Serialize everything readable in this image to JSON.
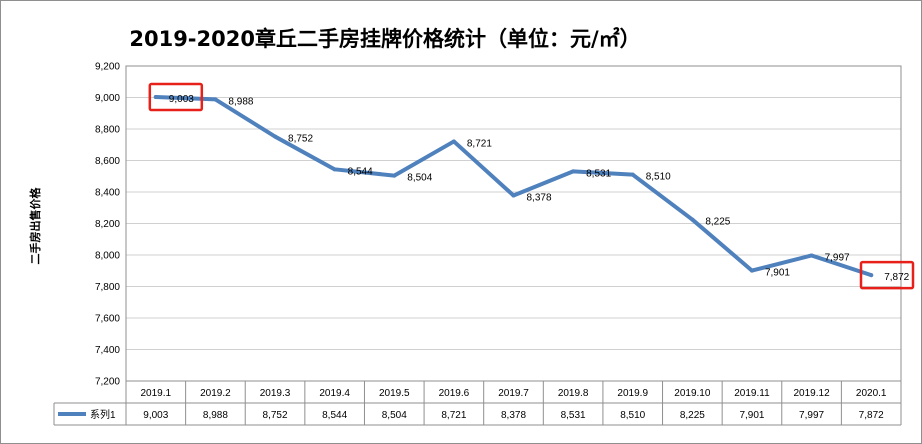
{
  "chart_data": {
    "type": "line",
    "title": "2019-2020章丘二手房挂牌价格统计（单位：元/㎡）",
    "ylabel": "二手房出售价格",
    "xlabel": "",
    "categories": [
      "2019.1",
      "2019.2",
      "2019.3",
      "2019.4",
      "2019.5",
      "2019.6",
      "2019.7",
      "2019.8",
      "2019.9",
      "2019.10",
      "2019.11",
      "2019.12",
      "2020.1"
    ],
    "series": [
      {
        "name": "系列1",
        "values": [
          9003,
          8988,
          8752,
          8544,
          8504,
          8721,
          8378,
          8531,
          8510,
          8225,
          7901,
          7997,
          7872
        ]
      }
    ],
    "value_labels": [
      "9,003",
      "8,988",
      "8,752",
      "8,544",
      "8,504",
      "8,721",
      "8,378",
      "8,531",
      "8,510",
      "8,225",
      "7,901",
      "7,997",
      "7,872"
    ],
    "ylim": [
      7200,
      9200
    ],
    "yticks": [
      "7,200",
      "7,400",
      "7,600",
      "7,800",
      "8,000",
      "8,200",
      "8,400",
      "8,600",
      "8,800",
      "9,000",
      "9,200"
    ],
    "grid": true,
    "legend": "data-table",
    "highlighted_points": [
      0,
      12
    ],
    "colors": {
      "line": "#4f81bd",
      "highlight_box": "#e8201a",
      "grid": "#d0d0d0",
      "plot_border": "#8f8f8f"
    }
  }
}
